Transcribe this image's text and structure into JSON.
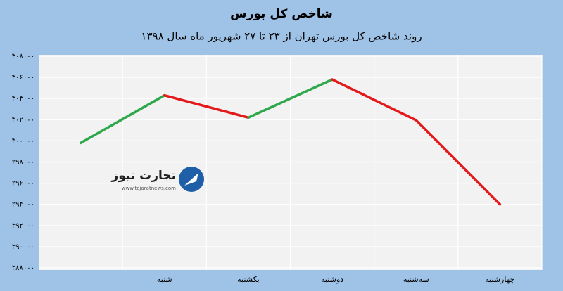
{
  "chart_data": {
    "type": "line",
    "title": "شاخص کل بورس",
    "subtitle": "روند شاخص کل بورس تهران از ۲۳ تا ۲۷ شهریور ماه سال ۱۳۹۸",
    "categories": [
      null,
      "شنبه",
      "یکشنبه",
      "دوشنبه",
      "سه‌شنبه",
      "چهارشنبه"
    ],
    "values": [
      299800,
      304300,
      302200,
      305800,
      301950,
      294000
    ],
    "rise_color": "#2ea84a",
    "fall_color": "#e3191b",
    "ylim": [
      288000,
      308000
    ],
    "yticks": [
      {
        "value": 288000,
        "label": "۲۸۸۰۰۰"
      },
      {
        "value": 290000,
        "label": "۲۹۰۰۰۰"
      },
      {
        "value": 292000,
        "label": "۲۹۲۰۰۰"
      },
      {
        "value": 294000,
        "label": "۲۹۴۰۰۰"
      },
      {
        "value": 296000,
        "label": "۲۹۶۰۰۰"
      },
      {
        "value": 298000,
        "label": "۲۹۸۰۰۰"
      },
      {
        "value": 300000,
        "label": "۳۰۰۰۰۰"
      },
      {
        "value": 302000,
        "label": "۳۰۲۰۰۰"
      },
      {
        "value": 304000,
        "label": "۳۰۴۰۰۰"
      },
      {
        "value": 306000,
        "label": "۳۰۶۰۰۰"
      },
      {
        "value": 308000,
        "label": "۳۰۸۰۰۰"
      }
    ],
    "grid": true,
    "logo": {
      "name": "تجارت نیوز",
      "url": "www.tejaratnews.com"
    }
  }
}
